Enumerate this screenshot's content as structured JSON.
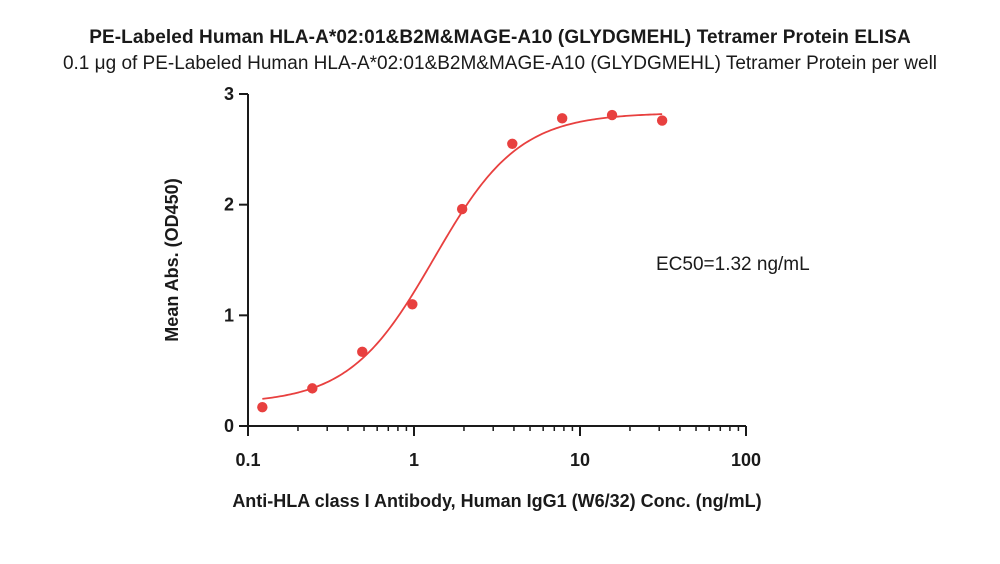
{
  "chart_data": {
    "type": "scatter",
    "title": "PE-Labeled Human HLA-A*02:01&B2M&MAGE-A10 (GLYDGMEHL) Tetramer Protein ELISA",
    "subtitle": "0.1 μg of PE-Labeled Human HLA-A*02:01&B2M&MAGE-A10 (GLYDGMEHL) Tetramer Protein per well",
    "xlabel": "Anti-HLA class I Antibody, Human IgG1 (W6/32) Conc. (ng/mL)",
    "ylabel": "Mean Abs. (OD450)",
    "xscale": "log",
    "xlim": [
      0.1,
      100
    ],
    "ylim": [
      0,
      3
    ],
    "xticks": [
      "0.1",
      "1",
      "10",
      "100"
    ],
    "yticks": [
      "0",
      "1",
      "2",
      "3"
    ],
    "grid": false,
    "series": [
      {
        "color": "#e8403f",
        "x": [
          0.122,
          0.244,
          0.488,
          0.977,
          1.95,
          3.91,
          7.81,
          15.6,
          31.25
        ],
        "y": [
          0.17,
          0.34,
          0.67,
          1.1,
          1.96,
          2.55,
          2.78,
          2.81,
          2.76
        ]
      }
    ],
    "fit_curve": {
      "color": "#e8403f",
      "model": "4PL",
      "bottom": 0.2,
      "top": 2.83,
      "ec50": 1.32,
      "hill": 1.7
    },
    "annotations": [
      {
        "text": "EC50=1.32 ng/mL"
      }
    ]
  }
}
